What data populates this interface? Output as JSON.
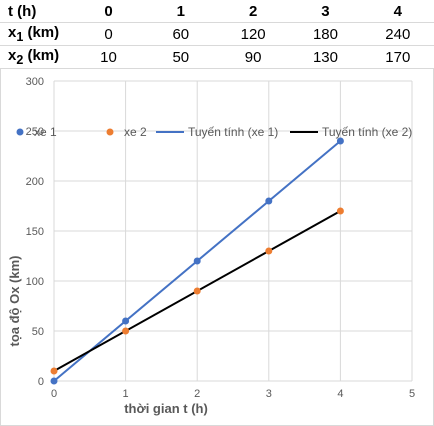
{
  "table": {
    "header_label": "t (h)",
    "header_values": [
      "0",
      "1",
      "2",
      "3",
      "4"
    ],
    "rows": [
      {
        "label_main": "x",
        "label_sub": "1",
        "label_tail": " (km)",
        "values": [
          "0",
          "60",
          "120",
          "180",
          "240"
        ]
      },
      {
        "label_main": "x",
        "label_sub": "2",
        "label_tail": " (km)",
        "values": [
          "10",
          "50",
          "90",
          "130",
          "170"
        ]
      }
    ]
  },
  "chart_data": {
    "type": "scatter",
    "xlabel": "thời gian t (h)",
    "ylabel": "tọa độ Ox (km)",
    "xlim": [
      0,
      5
    ],
    "ylim": [
      0,
      300
    ],
    "x_ticks": [
      "0",
      "1",
      "2",
      "3",
      "4",
      "5"
    ],
    "y_ticks": [
      "0",
      "50",
      "100",
      "150",
      "200",
      "250",
      "300"
    ],
    "grid": true,
    "legend_position": "top",
    "series": [
      {
        "name": "xe 1",
        "marker_color": "#4472C4",
        "x": [
          0,
          1,
          2,
          3,
          4
        ],
        "y": [
          0,
          60,
          120,
          180,
          240
        ]
      },
      {
        "name": "xe 2",
        "marker_color": "#ED7D31",
        "x": [
          0,
          1,
          2,
          3,
          4
        ],
        "y": [
          10,
          50,
          90,
          130,
          170
        ]
      }
    ],
    "trendlines": [
      {
        "name": "Tuyến tính (xe 1)",
        "color": "#4472C4",
        "slope": 60,
        "intercept": 0
      },
      {
        "name": "Tuyến tính (xe 2)",
        "color": "#000000",
        "slope": 40,
        "intercept": 10
      }
    ]
  }
}
